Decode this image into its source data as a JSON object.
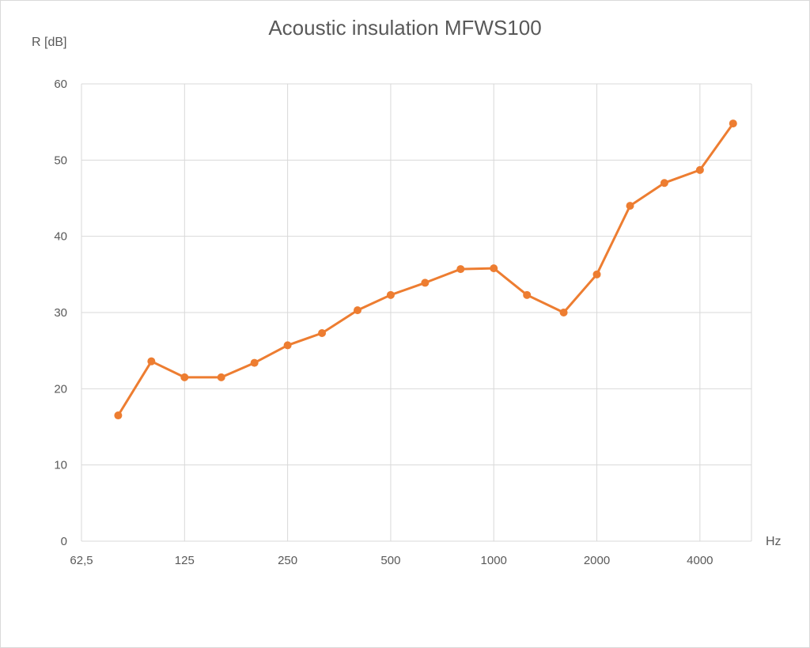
{
  "chart_data": {
    "type": "line",
    "title": "Acoustic insulation MFWS100",
    "xlabel": "Hz",
    "ylabel": "R [dB]",
    "ylim": [
      0,
      60
    ],
    "y_ticks": [
      "0",
      "10",
      "20",
      "30",
      "40",
      "50",
      "60"
    ],
    "x_ticks": [
      "62,5",
      "125",
      "250",
      "500",
      "1000",
      "2000",
      "4000"
    ],
    "x_scale": "log2",
    "grid": true,
    "line_color": "#ED7D31",
    "series": [
      {
        "x": [
          80,
          100,
          125,
          160,
          200,
          250,
          315,
          400,
          500,
          630,
          800,
          1000,
          1250,
          1600,
          2000,
          2500,
          3150,
          4000,
          5000
        ],
        "values": [
          16.5,
          23.6,
          21.5,
          21.5,
          23.4,
          25.7,
          27.3,
          30.3,
          32.3,
          33.9,
          35.7,
          35.8,
          32.3,
          30.0,
          35.0,
          44.0,
          47.0,
          48.7,
          54.8
        ]
      }
    ]
  }
}
